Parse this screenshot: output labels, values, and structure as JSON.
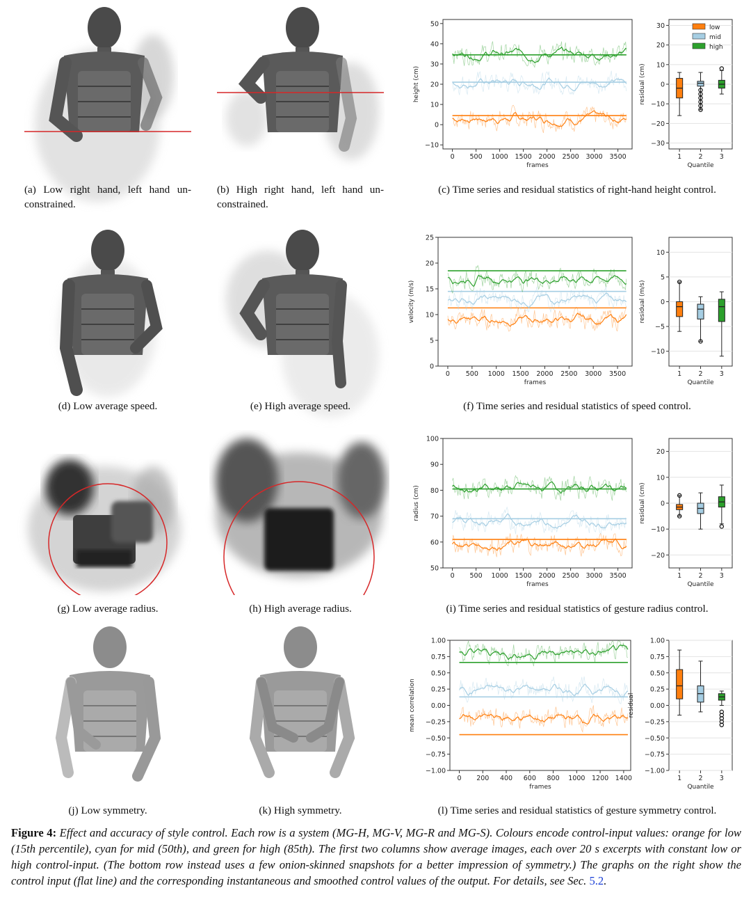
{
  "panels": [
    {
      "id": "a",
      "caption": "(a)  Low right hand, left hand unconstrained.",
      "caption_lines": [
        "(a)  Low right hand, left hand un-",
        "constrained."
      ]
    },
    {
      "id": "b",
      "caption": "(b)  High right hand, left hand unconstrained.",
      "caption_lines": [
        "(b)  High right hand, left hand un-",
        "constrained."
      ]
    },
    {
      "id": "c",
      "caption": "(c)  Time series and residual statistics of right-hand height control."
    },
    {
      "id": "d",
      "caption": "(d)  Low average speed."
    },
    {
      "id": "e",
      "caption": "(e)  High average speed."
    },
    {
      "id": "f",
      "caption": "(f)  Time series and residual statistics of speed control."
    },
    {
      "id": "g",
      "caption": "(g)  Low average radius."
    },
    {
      "id": "h",
      "caption": "(h)  High average radius."
    },
    {
      "id": "i",
      "caption": "(i)  Time series and residual statistics of gesture radius control."
    },
    {
      "id": "j",
      "caption": "(j)  Low symmetry."
    },
    {
      "id": "k",
      "caption": "(k)  High symmetry."
    },
    {
      "id": "l",
      "caption": "(l)  Time series and residual statistics of gesture symmetry control."
    }
  ],
  "figure_caption": {
    "label": "Figure 4:",
    "text": "Effect and accuracy of style control. Each row is a system (MG-H, MG-V, MG-R and MG-S). Colours encode control-input values: orange for low (15th percentile), cyan for mid (50th), and green for high (85th). The first two columns show average images, each over 20 s excerpts with constant low or high control-input. (The bottom row instead uses a few onion-skinned snapshots for a better impression of symmetry.) The graphs on the right show the control input (flat line) and the corresponding instantaneous and smoothed control values of the output. For details, see Sec.",
    "ref": "5.2",
    "end": "."
  },
  "colors": {
    "low": "#ff7f0e",
    "mid": "#a6cee3",
    "high": "#2ca02c",
    "red_line": "#d62728"
  },
  "legend": [
    "low",
    "mid",
    "high"
  ],
  "chart_data": [
    {
      "type": "line",
      "panel": "c",
      "xlabel": "frames",
      "ylabel": "height (cm)",
      "xlim": [
        -200,
        3800
      ],
      "ylim": [
        -12,
        52
      ],
      "xticks": [
        0,
        500,
        1000,
        1500,
        2000,
        2500,
        3000,
        3500
      ],
      "yticks": [
        -10,
        0,
        10,
        20,
        30,
        40,
        50
      ],
      "series": [
        {
          "level": "low",
          "target": 4.5,
          "mean": 3
        },
        {
          "level": "mid",
          "target": 21,
          "mean": 21
        },
        {
          "level": "high",
          "target": 34.5,
          "mean": 35
        }
      ]
    },
    {
      "type": "box",
      "panel": "c",
      "xlabel": "Quantile",
      "ylabel": "residual (cm)",
      "ylim": [
        -33,
        33
      ],
      "xticks": [
        1,
        2,
        3
      ],
      "yticks": [
        -30,
        -20,
        -10,
        0,
        10,
        20,
        30
      ],
      "boxes": [
        {
          "q": 1,
          "level": "low",
          "min": -16,
          "q1": -7,
          "median": -2,
          "q3": 3,
          "max": 6,
          "outliers": []
        },
        {
          "q": 2,
          "level": "mid",
          "min": -13,
          "q1": -1,
          "median": 0.5,
          "q3": 1.5,
          "max": 6,
          "outliers": [
            -3,
            -5,
            -7,
            -9,
            -11,
            -13
          ]
        },
        {
          "q": 3,
          "level": "high",
          "min": -5,
          "q1": -2,
          "median": 0,
          "q3": 2,
          "max": 7,
          "outliers": [
            8
          ]
        }
      ]
    },
    {
      "type": "line",
      "panel": "f",
      "xlabel": "frames",
      "ylabel": "velocity (m/s)",
      "xlim": [
        -200,
        3800
      ],
      "ylim": [
        0,
        25
      ],
      "xticks": [
        0,
        500,
        1000,
        1500,
        2000,
        2500,
        3000,
        3500
      ],
      "yticks": [
        0,
        5,
        10,
        15,
        20,
        25
      ],
      "series": [
        {
          "level": "low",
          "target": 11.3,
          "mean": 9
        },
        {
          "level": "mid",
          "target": 14.5,
          "mean": 13
        },
        {
          "level": "high",
          "target": 18.5,
          "mean": 17
        }
      ]
    },
    {
      "type": "box",
      "panel": "f",
      "xlabel": "Quantile",
      "ylabel": "residual (m/s)",
      "ylim": [
        -13,
        13
      ],
      "xticks": [
        1,
        2,
        3
      ],
      "yticks": [
        -10,
        -5,
        0,
        5,
        10
      ],
      "boxes": [
        {
          "q": 1,
          "level": "low",
          "min": -6,
          "q1": -3,
          "median": -1,
          "q3": 0,
          "max": 4,
          "outliers": [
            4
          ]
        },
        {
          "q": 2,
          "level": "mid",
          "min": -8,
          "q1": -3.5,
          "median": -1.5,
          "q3": -0.5,
          "max": 1,
          "outliers": [
            -8
          ]
        },
        {
          "q": 3,
          "level": "high",
          "min": -11,
          "q1": -4,
          "median": -1,
          "q3": 0.5,
          "max": 2,
          "outliers": []
        }
      ]
    },
    {
      "type": "line",
      "panel": "i",
      "xlabel": "frames",
      "ylabel": "radius (cm)",
      "xlim": [
        -200,
        3800
      ],
      "ylim": [
        50,
        100
      ],
      "xticks": [
        0,
        500,
        1000,
        1500,
        2000,
        2500,
        3000,
        3500
      ],
      "yticks": [
        50,
        60,
        70,
        80,
        90,
        100
      ],
      "series": [
        {
          "level": "low",
          "target": 61,
          "mean": 59
        },
        {
          "level": "mid",
          "target": 69,
          "mean": 68
        },
        {
          "level": "high",
          "target": 80.5,
          "mean": 81
        }
      ]
    },
    {
      "type": "box",
      "panel": "i",
      "xlabel": "Quantile",
      "ylabel": "residual (cm)",
      "ylim": [
        -25,
        25
      ],
      "xticks": [
        1,
        2,
        3
      ],
      "yticks": [
        -20,
        -10,
        0,
        10,
        20
      ],
      "boxes": [
        {
          "q": 1,
          "level": "low",
          "min": -5,
          "q1": -2.5,
          "median": -1.5,
          "q3": -0.5,
          "max": 3,
          "outliers": [
            3,
            -5
          ]
        },
        {
          "q": 2,
          "level": "mid",
          "min": -10,
          "q1": -4,
          "median": -2,
          "q3": 0,
          "max": 4,
          "outliers": []
        },
        {
          "q": 3,
          "level": "high",
          "min": -8,
          "q1": -1.5,
          "median": 0.5,
          "q3": 2.5,
          "max": 7,
          "outliers": [
            -9
          ]
        }
      ]
    },
    {
      "type": "line",
      "panel": "l",
      "xlabel": "frames",
      "ylabel": "mean correlation",
      "xlim": [
        -80,
        1460
      ],
      "ylim": [
        -1.0,
        1.0
      ],
      "xticks": [
        0,
        200,
        400,
        600,
        800,
        1000,
        1200,
        1400
      ],
      "yticks": [
        -1.0,
        -0.75,
        -0.5,
        -0.25,
        0.0,
        0.25,
        0.5,
        0.75,
        1.0
      ],
      "series": [
        {
          "level": "low",
          "target": -0.45,
          "mean": -0.2
        },
        {
          "level": "mid",
          "target": 0.13,
          "mean": 0.25
        },
        {
          "level": "high",
          "target": 0.66,
          "mean": 0.8
        }
      ]
    },
    {
      "type": "box",
      "panel": "l",
      "xlabel": "Quantile",
      "ylabel": "residual",
      "ylim": [
        -1.0,
        1.0
      ],
      "xticks": [
        1,
        2,
        3
      ],
      "yticks": [
        -1.0,
        -0.75,
        -0.5,
        -0.25,
        0.0,
        0.25,
        0.5,
        0.75,
        1.0
      ],
      "boxes": [
        {
          "q": 1,
          "level": "low",
          "min": -0.15,
          "q1": 0.1,
          "median": 0.3,
          "q3": 0.55,
          "max": 0.85,
          "outliers": []
        },
        {
          "q": 2,
          "level": "mid",
          "min": -0.1,
          "q1": 0.05,
          "median": 0.18,
          "q3": 0.3,
          "max": 0.68,
          "outliers": []
        },
        {
          "q": 3,
          "level": "high",
          "min": 0.0,
          "q1": 0.08,
          "median": 0.13,
          "q3": 0.18,
          "max": 0.22,
          "outliers": [
            -0.1,
            -0.15,
            -0.2,
            -0.25,
            -0.3
          ]
        }
      ]
    }
  ]
}
